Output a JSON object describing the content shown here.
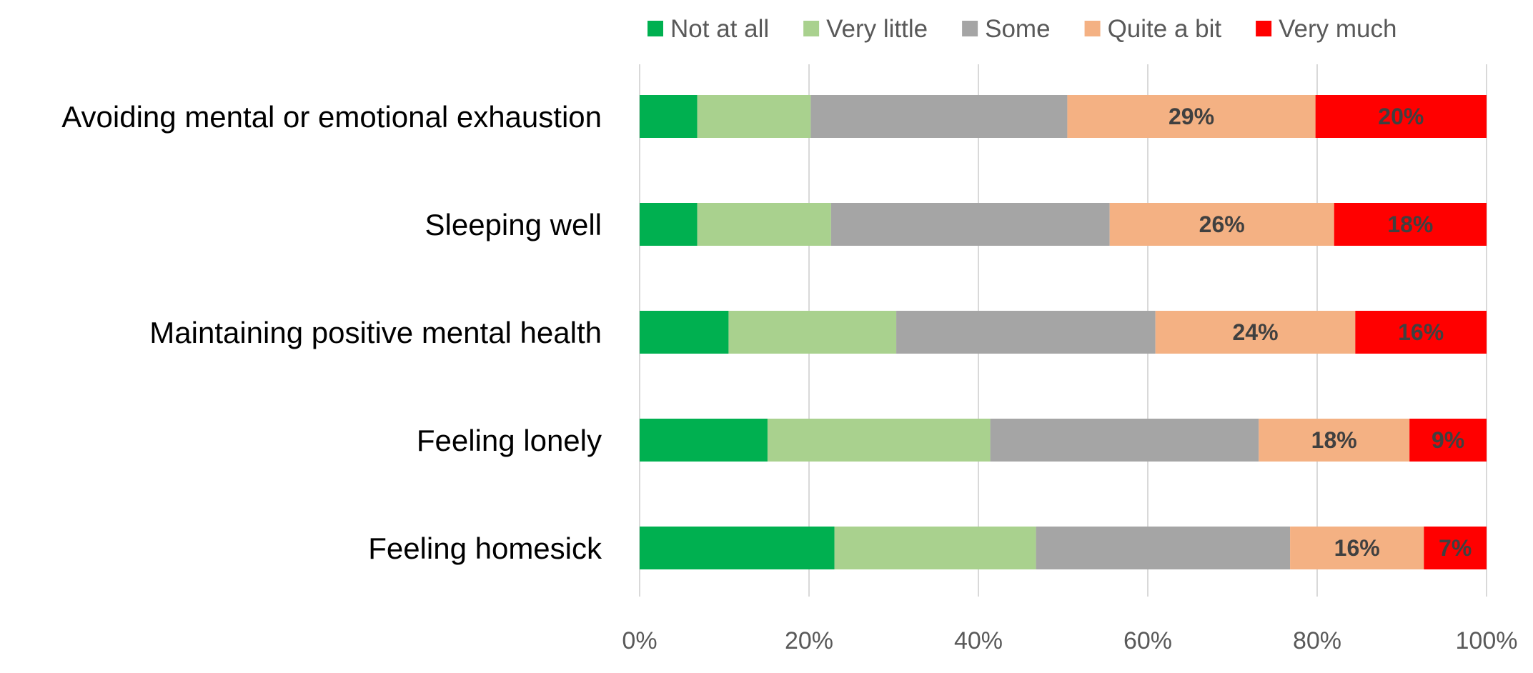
{
  "chart_data": {
    "type": "bar",
    "orientation": "horizontal",
    "stacked": true,
    "normalized": true,
    "categories": [
      "Avoiding mental or emotional exhaustion",
      "Sleeping well",
      "Maintaining positive mental health",
      "Feeling lonely",
      "Feeling homesick"
    ],
    "series": [
      {
        "name": "Not at all",
        "color": "#00B050",
        "values": [
          6.8,
          6.8,
          10.5,
          15.1,
          23.0
        ]
      },
      {
        "name": "Very little",
        "color": "#A9D18E",
        "values": [
          13.4,
          15.8,
          19.8,
          26.3,
          23.8
        ]
      },
      {
        "name": "Some",
        "color": "#A5A5A5",
        "values": [
          30.3,
          32.9,
          30.6,
          31.7,
          30.0
        ]
      },
      {
        "name": "Quite a bit",
        "color": "#F4B183",
        "values": [
          29.3,
          26.5,
          23.6,
          17.8,
          15.8
        ]
      },
      {
        "name": "Very much",
        "color": "#FF0000",
        "values": [
          20.2,
          18.0,
          15.5,
          9.1,
          7.4
        ]
      }
    ],
    "data_labels": {
      "Quite a bit": [
        "29%",
        "26%",
        "24%",
        "18%",
        "16%"
      ],
      "Very much": [
        "20%",
        "18%",
        "16%",
        "9%",
        "7%"
      ]
    },
    "x_ticks": [
      "0%",
      "20%",
      "40%",
      "60%",
      "80%",
      "100%"
    ],
    "xlim": [
      0,
      100
    ],
    "grid": "vertical",
    "legend_position": "top",
    "title": "",
    "xlabel": "",
    "ylabel": ""
  }
}
